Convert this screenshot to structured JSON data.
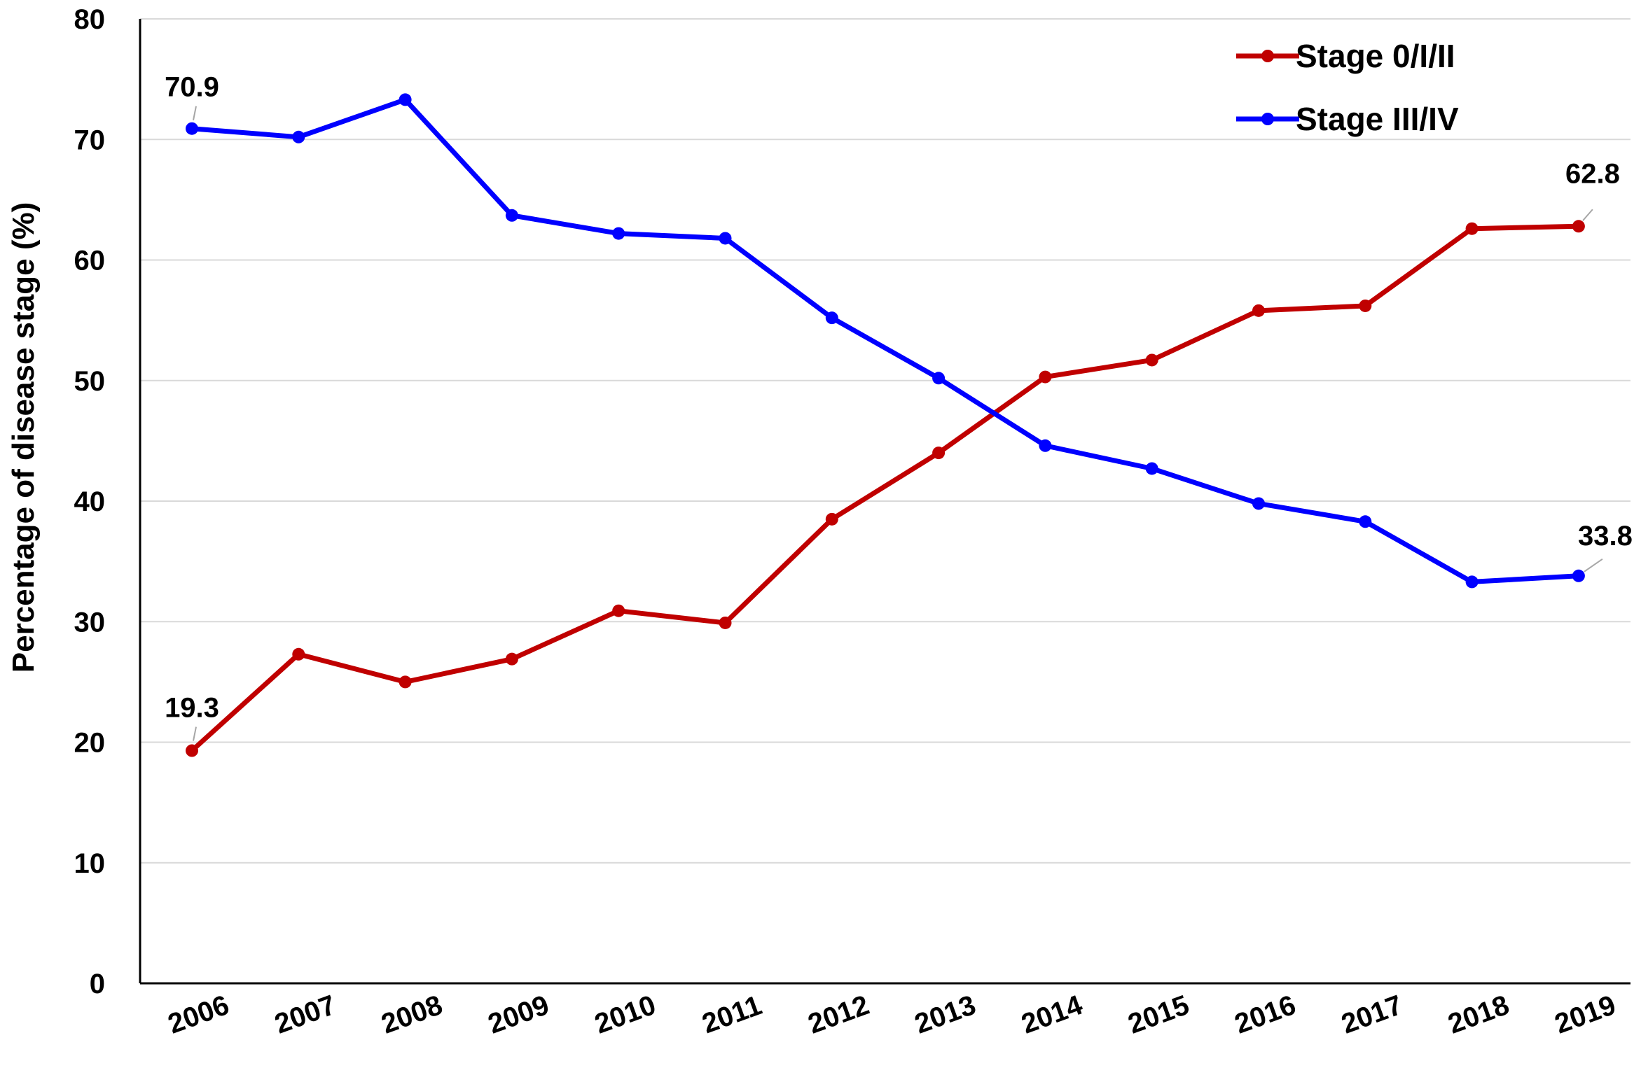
{
  "chart_data": {
    "type": "line",
    "ylabel": "Percentage of disease stage (%)",
    "xlabel": "",
    "title": "",
    "x": [
      "2006",
      "2007",
      "2008",
      "2009",
      "2010",
      "2011",
      "2012",
      "2013",
      "2014",
      "2015",
      "2016",
      "2017",
      "2018",
      "2019"
    ],
    "ylim": [
      0,
      80
    ],
    "yticks": [
      "0",
      "10",
      "20",
      "30",
      "40",
      "50",
      "60",
      "70",
      "80"
    ],
    "grid": "horizontal",
    "legend_position": "top-right",
    "series": [
      {
        "name": "Stage 0/I/II",
        "color": "#C00000",
        "values": [
          19.3,
          27.3,
          25.0,
          26.9,
          30.9,
          29.9,
          38.5,
          44.0,
          50.3,
          51.7,
          55.8,
          56.2,
          62.6,
          62.8
        ],
        "labels": [
          {
            "index": 0,
            "text": "19.3"
          },
          {
            "index": 13,
            "text": "62.8"
          }
        ]
      },
      {
        "name": "Stage III/IV",
        "color": "#0000FF",
        "values": [
          70.9,
          70.2,
          73.3,
          63.7,
          62.2,
          61.8,
          55.2,
          50.2,
          44.6,
          42.7,
          39.8,
          38.3,
          33.3,
          33.8
        ],
        "labels": [
          {
            "index": 0,
            "text": "70.9"
          },
          {
            "index": 13,
            "text": "33.8"
          }
        ]
      }
    ]
  }
}
